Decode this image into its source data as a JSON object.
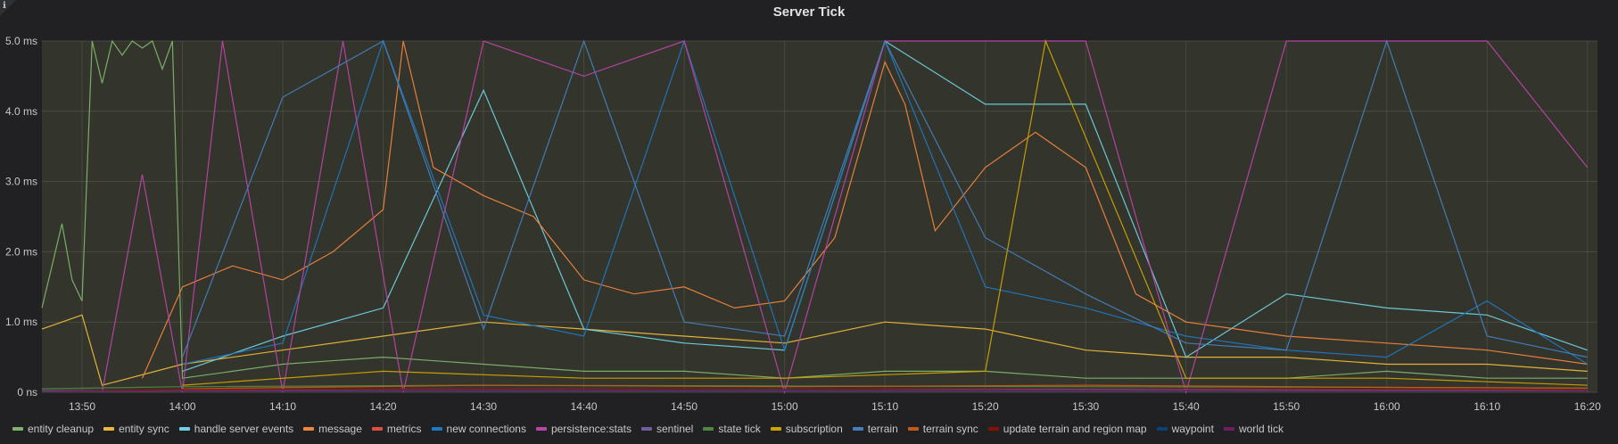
{
  "panel": {
    "title": "Server Tick",
    "info_icon": "info-icon"
  },
  "chart_data": {
    "type": "line",
    "title": "Server Tick",
    "xlabel": "",
    "ylabel": "",
    "xlim": [
      "13:46",
      "16:21"
    ],
    "ylim": [
      0,
      5.0
    ],
    "yunit": "ms",
    "grid": true,
    "legend": "bottom",
    "x_ticks": [
      "13:50",
      "14:00",
      "14:10",
      "14:20",
      "14:30",
      "14:40",
      "14:50",
      "15:00",
      "15:10",
      "15:20",
      "15:30",
      "15:40",
      "15:50",
      "16:00",
      "16:10",
      "16:20"
    ],
    "y_ticks": [
      {
        "value": 0,
        "label": "0 ns"
      },
      {
        "value": 1.0,
        "label": "1.0 ms"
      },
      {
        "value": 2.0,
        "label": "2.0 ms"
      },
      {
        "value": 3.0,
        "label": "3.0 ms"
      },
      {
        "value": 4.0,
        "label": "4.0 ms"
      },
      {
        "value": 5.0,
        "label": "5.0 ms"
      }
    ],
    "series": [
      {
        "name": "entity cleanup",
        "color": "#7eb26d",
        "x": [
          "13:46",
          "13:47",
          "13:48",
          "13:49",
          "13:50",
          "13:51",
          "13:52",
          "13:53",
          "13:54",
          "13:55",
          "13:56",
          "13:57",
          "13:58",
          "13:59",
          "14:00",
          "14:05",
          "14:10",
          "14:20",
          "14:30",
          "14:40",
          "14:50",
          "15:00",
          "15:10",
          "15:20",
          "15:30",
          "15:40",
          "15:50",
          "16:00",
          "16:10",
          "16:20"
        ],
        "values": [
          1.2,
          1.8,
          2.4,
          1.6,
          1.3,
          5.0,
          4.4,
          5.0,
          4.8,
          5.0,
          4.9,
          5.0,
          4.6,
          5.0,
          0.2,
          0.3,
          0.4,
          0.5,
          0.4,
          0.3,
          0.3,
          0.2,
          0.3,
          0.3,
          0.2,
          0.2,
          0.2,
          0.3,
          0.2,
          0.2
        ]
      },
      {
        "name": "entity sync",
        "color": "#eab839",
        "x": [
          "13:46",
          "13:48",
          "13:50",
          "13:52",
          "14:00",
          "14:10",
          "14:20",
          "14:30",
          "14:40",
          "14:50",
          "15:00",
          "15:10",
          "15:20",
          "15:30",
          "15:40",
          "15:50",
          "16:00",
          "16:10",
          "16:20"
        ],
        "values": [
          0.9,
          1.0,
          1.1,
          0.1,
          0.4,
          0.6,
          0.8,
          1.0,
          0.9,
          0.8,
          0.7,
          1.0,
          0.9,
          0.6,
          0.5,
          0.5,
          0.4,
          0.4,
          0.3
        ]
      },
      {
        "name": "handle server events",
        "color": "#6ed0e0",
        "x": [
          "14:00",
          "14:10",
          "14:20",
          "14:30",
          "14:40",
          "14:50",
          "15:00",
          "15:10",
          "15:20",
          "15:30",
          "15:40",
          "15:50",
          "16:00",
          "16:10",
          "16:20"
        ],
        "values": [
          0.3,
          0.8,
          1.2,
          4.3,
          0.9,
          0.7,
          0.6,
          5.0,
          4.1,
          4.1,
          0.5,
          1.4,
          1.2,
          1.1,
          0.6
        ]
      },
      {
        "name": "message",
        "color": "#ef843c",
        "x": [
          "13:56",
          "14:00",
          "14:05",
          "14:10",
          "14:15",
          "14:20",
          "14:22",
          "14:25",
          "14:30",
          "14:35",
          "14:40",
          "14:45",
          "14:50",
          "14:55",
          "15:00",
          "15:05",
          "15:10",
          "15:12",
          "15:15",
          "15:20",
          "15:25",
          "15:30",
          "15:35",
          "15:40",
          "15:50",
          "16:00",
          "16:10",
          "16:20"
        ],
        "values": [
          0.2,
          1.5,
          1.8,
          1.6,
          2.0,
          2.6,
          5.0,
          3.2,
          2.8,
          2.5,
          1.6,
          1.4,
          1.5,
          1.2,
          1.3,
          2.2,
          4.7,
          4.1,
          2.3,
          3.2,
          3.7,
          3.2,
          1.4,
          1.0,
          0.8,
          0.7,
          0.6,
          0.4
        ]
      },
      {
        "name": "metrics",
        "color": "#e24d42",
        "x": [
          "13:46",
          "14:00",
          "14:30",
          "15:00",
          "15:30",
          "16:00",
          "16:20"
        ],
        "values": [
          0.01,
          0.02,
          0.02,
          0.02,
          0.02,
          0.02,
          0.02
        ]
      },
      {
        "name": "new connections",
        "color": "#1f78c1",
        "x": [
          "14:00",
          "14:10",
          "14:20",
          "14:30",
          "14:40",
          "14:50",
          "15:00",
          "15:10",
          "15:20",
          "15:30",
          "15:40",
          "15:50",
          "16:00",
          "16:10",
          "16:20"
        ],
        "values": [
          0.4,
          0.7,
          5.0,
          1.1,
          0.8,
          5.0,
          0.6,
          5.0,
          1.5,
          1.2,
          0.8,
          0.6,
          0.5,
          1.3,
          0.4
        ]
      },
      {
        "name": "persistence:stats",
        "color": "#ba43a9",
        "x": [
          "13:52",
          "13:56",
          "14:00",
          "14:04",
          "14:10",
          "14:16",
          "14:22",
          "14:30",
          "14:40",
          "14:50",
          "15:00",
          "15:10",
          "15:20",
          "15:30",
          "15:40",
          "15:50",
          "16:00",
          "16:10",
          "16:20"
        ],
        "values": [
          0.0,
          3.1,
          0.0,
          5.0,
          0.0,
          5.0,
          0.0,
          5.0,
          4.5,
          5.0,
          0.0,
          5.0,
          5.0,
          5.0,
          0.0,
          5.0,
          5.0,
          5.0,
          3.2
        ]
      },
      {
        "name": "sentinel",
        "color": "#705da0",
        "x": [
          "13:46",
          "14:00",
          "14:30",
          "15:00",
          "15:30",
          "16:00",
          "16:20"
        ],
        "values": [
          0.02,
          0.03,
          0.05,
          0.04,
          0.04,
          0.03,
          0.03
        ]
      },
      {
        "name": "state tick",
        "color": "#508642",
        "x": [
          "13:46",
          "14:00",
          "14:30",
          "15:00",
          "15:30",
          "16:00",
          "16:20"
        ],
        "values": [
          0.05,
          0.08,
          0.1,
          0.09,
          0.08,
          0.07,
          0.06
        ]
      },
      {
        "name": "subscription",
        "color": "#cca300",
        "x": [
          "14:00",
          "14:20",
          "14:40",
          "15:00",
          "15:20",
          "15:26",
          "15:40",
          "16:00",
          "16:20"
        ],
        "values": [
          0.1,
          0.3,
          0.2,
          0.2,
          0.3,
          5.0,
          0.2,
          0.2,
          0.1
        ]
      },
      {
        "name": "terrain",
        "color": "#447ebc",
        "x": [
          "14:00",
          "14:10",
          "14:20",
          "14:30",
          "14:40",
          "14:50",
          "15:00",
          "15:10",
          "15:20",
          "15:30",
          "15:40",
          "15:50",
          "16:00",
          "16:10",
          "16:20"
        ],
        "values": [
          0.5,
          4.2,
          5.0,
          0.9,
          5.0,
          1.0,
          0.8,
          5.0,
          2.2,
          1.4,
          0.7,
          0.6,
          5.0,
          0.8,
          0.5
        ]
      },
      {
        "name": "terrain sync",
        "color": "#c15c17",
        "x": [
          "14:00",
          "14:30",
          "15:00",
          "15:30",
          "16:00",
          "16:20"
        ],
        "values": [
          0.05,
          0.1,
          0.08,
          0.1,
          0.07,
          0.06
        ]
      },
      {
        "name": "update terrain and region map",
        "color": "#890f02",
        "x": [
          "13:46",
          "14:00",
          "14:30",
          "15:00",
          "15:30",
          "16:00",
          "16:20"
        ],
        "values": [
          0.01,
          0.04,
          0.05,
          0.04,
          0.06,
          0.05,
          0.04
        ]
      },
      {
        "name": "waypoint",
        "color": "#0a437c",
        "x": [
          "13:46",
          "14:00",
          "14:30",
          "15:00",
          "15:30",
          "16:00",
          "16:20"
        ],
        "values": [
          0.01,
          0.02,
          0.03,
          0.03,
          0.03,
          0.02,
          0.02
        ]
      },
      {
        "name": "world tick",
        "color": "#6d1f62",
        "x": [
          "13:46",
          "14:00",
          "14:30",
          "15:00",
          "15:30",
          "16:00",
          "16:20"
        ],
        "values": [
          0.01,
          0.02,
          0.02,
          0.02,
          0.02,
          0.02,
          0.02
        ]
      }
    ]
  }
}
